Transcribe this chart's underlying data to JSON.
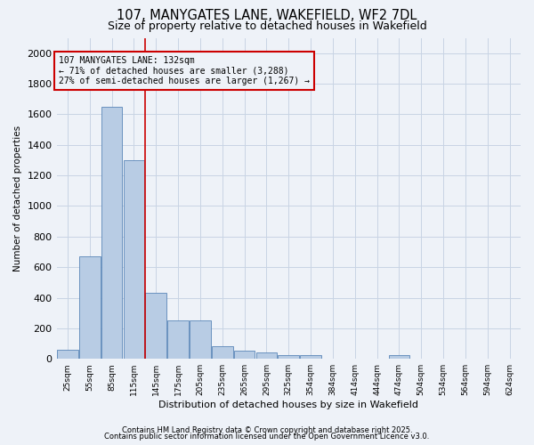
{
  "title": "107, MANYGATES LANE, WAKEFIELD, WF2 7DL",
  "subtitle": "Size of property relative to detached houses in Wakefield",
  "xlabel": "Distribution of detached houses by size in Wakefield",
  "ylabel": "Number of detached properties",
  "footnote1": "Contains HM Land Registry data © Crown copyright and database right 2025.",
  "footnote2": "Contains public sector information licensed under the Open Government Licence v3.0.",
  "bar_color": "#b8cce4",
  "bar_edge_color": "#5a86b8",
  "grid_color": "#c8d4e4",
  "annotation_box_color": "#cc0000",
  "annotation_text": "107 MANYGATES LANE: 132sqm\n← 71% of detached houses are smaller (3,288)\n27% of semi-detached houses are larger (1,267) →",
  "property_line_x": 4,
  "categories": [
    "25sqm",
    "55sqm",
    "85sqm",
    "115sqm",
    "145sqm",
    "175sqm",
    "205sqm",
    "235sqm",
    "265sqm",
    "295sqm",
    "325sqm",
    "354sqm",
    "384sqm",
    "414sqm",
    "444sqm",
    "474sqm",
    "504sqm",
    "534sqm",
    "564sqm",
    "594sqm",
    "624sqm"
  ],
  "values": [
    60,
    670,
    1650,
    1300,
    430,
    250,
    250,
    80,
    55,
    40,
    25,
    25,
    0,
    0,
    0,
    25,
    0,
    0,
    0,
    0,
    0
  ],
  "ylim": [
    0,
    2100
  ],
  "yticks": [
    0,
    200,
    400,
    600,
    800,
    1000,
    1200,
    1400,
    1600,
    1800,
    2000
  ],
  "background_color": "#eef2f8",
  "fig_width": 6.0,
  "fig_height": 5.0,
  "title_fontsize": 10.5,
  "subtitle_fontsize": 9
}
